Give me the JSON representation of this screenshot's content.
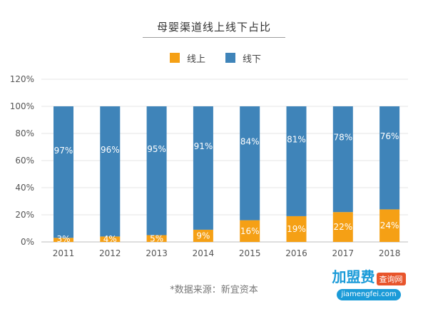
{
  "chart_data": {
    "type": "bar",
    "stacked": true,
    "title": "母婴渠道线上线下占比",
    "xlabel": "",
    "ylabel": "",
    "ylim": [
      0,
      120
    ],
    "yticks": [
      "0%",
      "20%",
      "40%",
      "60%",
      "80%",
      "100%",
      "120%"
    ],
    "ytick_values": [
      0,
      20,
      40,
      60,
      80,
      100,
      120
    ],
    "categories": [
      "2011",
      "2012",
      "2013",
      "2014",
      "2015",
      "2016",
      "2017",
      "2018"
    ],
    "series": [
      {
        "name": "线上",
        "color": "#f5a015",
        "values": [
          3,
          4,
          5,
          9,
          16,
          19,
          22,
          24
        ],
        "labels": [
          "3%",
          "4%",
          "5%",
          "9%",
          "16%",
          "19%",
          "22%",
          "24%"
        ]
      },
      {
        "name": "线下",
        "color": "#3f84b9",
        "values": [
          97,
          96,
          95,
          91,
          84,
          81,
          78,
          76
        ],
        "labels": [
          "97%",
          "96%",
          "95%",
          "91%",
          "84%",
          "81%",
          "78%",
          "76%"
        ]
      }
    ],
    "legend_position": "top-center",
    "grid": true
  },
  "source_note": "*数据来源：新宜资本",
  "watermark": {
    "logo_text": "加盟费",
    "tag": "查询网",
    "url": "jiamengfei.com"
  }
}
